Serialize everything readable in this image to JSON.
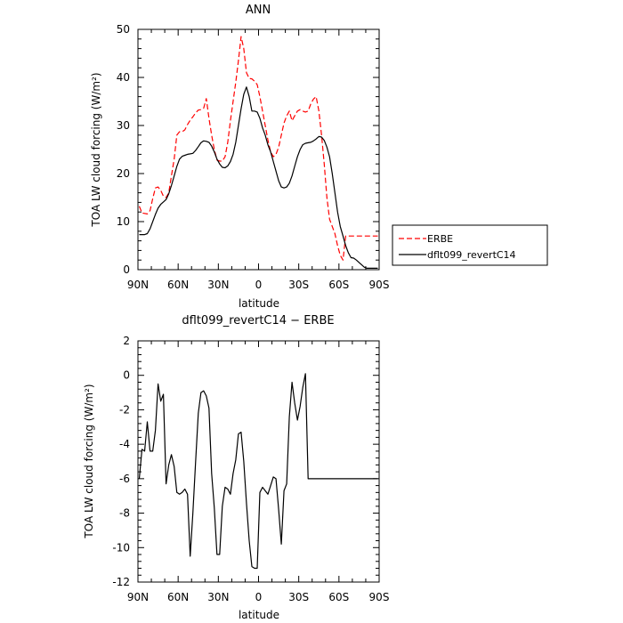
{
  "chart_data": [
    {
      "type": "line",
      "title": "ANN",
      "xlabel": "latitude",
      "ylabel": "TOA LW cloud forcing (W/m²)",
      "xlim": [
        -90,
        90
      ],
      "ylim": [
        0,
        50
      ],
      "yticks": [
        0,
        10,
        20,
        30,
        40,
        50
      ],
      "xticks": [
        {
          "value": -90,
          "label": "90N"
        },
        {
          "value": -60,
          "label": "60N"
        },
        {
          "value": -30,
          "label": "30N"
        },
        {
          "value": 0,
          "label": "0"
        },
        {
          "value": 30,
          "label": "30S"
        },
        {
          "value": 60,
          "label": "60S"
        },
        {
          "value": 90,
          "label": "90S"
        }
      ],
      "legend_position": "right",
      "series": [
        {
          "name": "ERBE",
          "color": "#ff0000",
          "dash": "dashed",
          "x": [
            -89,
            -87,
            -85,
            -83,
            -81,
            -79,
            -77,
            -75,
            -73,
            -71,
            -69,
            -67,
            -65,
            -63,
            -61,
            -59,
            -57,
            -55,
            -53,
            -51,
            -49,
            -47,
            -45,
            -43,
            -41,
            -39,
            -37,
            -35,
            -33,
            -31,
            -29,
            -27,
            -25,
            -23,
            -21,
            -19,
            -17,
            -15,
            -13,
            -11,
            -9,
            -7,
            -5,
            -3,
            -1,
            1,
            3,
            5,
            7,
            9,
            11,
            13,
            15,
            17,
            19,
            21,
            23,
            25,
            27,
            29,
            31,
            33,
            35,
            37,
            39,
            41,
            43,
            45,
            47,
            49,
            51,
            53,
            55,
            57,
            59,
            61,
            63,
            65,
            67,
            69,
            71,
            73,
            75,
            77,
            79,
            81,
            83,
            85,
            87,
            89
          ],
          "values": [
            13.2,
            11.8,
            11.7,
            11.6,
            12.3,
            14.8,
            17.0,
            17.2,
            16.5,
            15.3,
            15.0,
            16.0,
            19.5,
            23.0,
            28.0,
            28.7,
            28.7,
            29.1,
            30.2,
            31.1,
            31.8,
            32.6,
            33.2,
            33.3,
            33.6,
            35.6,
            31.5,
            28.0,
            25.0,
            22.8,
            22.6,
            22.6,
            23.5,
            26.5,
            31.0,
            35.0,
            39.0,
            43.5,
            48.5,
            46.0,
            41.0,
            39.8,
            39.7,
            39.2,
            38.5,
            36.0,
            33.0,
            30.0,
            27.0,
            24.5,
            23.5,
            24.0,
            25.5,
            28.0,
            30.5,
            32.0,
            33.0,
            31.0,
            32.0,
            33.0,
            33.3,
            33.0,
            32.8,
            33.0,
            34.5,
            35.5,
            36.0,
            33.0,
            28.0,
            22.0,
            15.0,
            10.5,
            9.0,
            7.5,
            5.0,
            3.0,
            2.0,
            7.0,
            7.0,
            7.0,
            7.0,
            7.0,
            7.0,
            7.0,
            7.0,
            7.0,
            7.0,
            7.0,
            7.0,
            7.0
          ]
        },
        {
          "name": "dflt099_revertC14",
          "color": "#000000",
          "dash": "solid",
          "x": [
            -89,
            -87,
            -85,
            -83,
            -81,
            -79,
            -77,
            -75,
            -73,
            -71,
            -69,
            -67,
            -65,
            -63,
            -61,
            -59,
            -57,
            -55,
            -53,
            -51,
            -49,
            -47,
            -45,
            -43,
            -41,
            -39,
            -37,
            -35,
            -33,
            -31,
            -29,
            -27,
            -25,
            -23,
            -21,
            -19,
            -17,
            -15,
            -13,
            -11,
            -9,
            -7,
            -5,
            -3,
            -1,
            1,
            3,
            5,
            7,
            9,
            11,
            13,
            15,
            17,
            19,
            21,
            23,
            25,
            27,
            29,
            31,
            33,
            35,
            37,
            39,
            41,
            43,
            45,
            47,
            49,
            51,
            53,
            55,
            57,
            59,
            61,
            63,
            65,
            67,
            69,
            71,
            73,
            75,
            77,
            79,
            81,
            83,
            85,
            87,
            89
          ],
          "values": [
            7.3,
            7.3,
            7.3,
            7.5,
            8.5,
            10.0,
            11.5,
            12.8,
            13.6,
            14.1,
            14.6,
            15.8,
            17.5,
            19.5,
            21.5,
            23.0,
            23.6,
            23.8,
            24.0,
            24.1,
            24.2,
            24.8,
            25.6,
            26.4,
            26.8,
            26.7,
            26.5,
            25.7,
            24.5,
            23.0,
            22.0,
            21.3,
            21.2,
            21.6,
            22.5,
            24.0,
            26.5,
            30.0,
            33.5,
            36.5,
            38.0,
            36.0,
            33.0,
            33.0,
            32.8,
            31.5,
            29.5,
            28.0,
            26.0,
            24.5,
            22.5,
            20.5,
            18.5,
            17.2,
            17.0,
            17.2,
            18.0,
            19.5,
            21.5,
            23.5,
            25.0,
            26.0,
            26.3,
            26.4,
            26.5,
            26.8,
            27.2,
            27.7,
            27.6,
            26.9,
            25.5,
            23.5,
            20.0,
            16.0,
            12.0,
            9.0,
            7.0,
            5.0,
            3.5,
            2.5,
            2.4,
            2.0,
            1.5,
            1.0,
            0.5,
            0.3,
            0.3,
            0.3,
            0.3,
            0.3
          ]
        }
      ]
    },
    {
      "type": "line",
      "title": "dflt099_revertC14 − ERBE",
      "xlabel": "latitude",
      "ylabel": "TOA LW cloud forcing (W/m²)",
      "xlim": [
        -90,
        90
      ],
      "ylim": [
        -12,
        2
      ],
      "yticks": [
        -12,
        -10,
        -8,
        -6,
        -4,
        -2,
        0,
        2
      ],
      "xticks": [
        {
          "value": -90,
          "label": "90N"
        },
        {
          "value": -60,
          "label": "60N"
        },
        {
          "value": -30,
          "label": "30N"
        },
        {
          "value": 0,
          "label": "0"
        },
        {
          "value": 30,
          "label": "30S"
        },
        {
          "value": 60,
          "label": "60S"
        },
        {
          "value": 90,
          "label": "90S"
        }
      ],
      "series": [
        {
          "color": "#000000",
          "dash": "solid",
          "x": [
            -89,
            -87,
            -85,
            -83,
            -81,
            -79,
            -77,
            -75,
            -73,
            -71,
            -69,
            -67,
            -65,
            -63,
            -61,
            -59,
            -57,
            -55,
            -53,
            -51,
            -49,
            -47,
            -45,
            -43,
            -41,
            -39,
            -37,
            -35,
            -33,
            -31,
            -29,
            -27,
            -25,
            -23,
            -21,
            -19,
            -17,
            -15,
            -13,
            -11,
            -9,
            -7,
            -5,
            -3,
            -1,
            1,
            3,
            5,
            7,
            9,
            11,
            13,
            15,
            17,
            19,
            21,
            23,
            25,
            27,
            29,
            31,
            33,
            35,
            37,
            39,
            41,
            43,
            45,
            47,
            49,
            51,
            53,
            55,
            57,
            59,
            61,
            63,
            65,
            67,
            69,
            71,
            73,
            75,
            77,
            79,
            81,
            83,
            85,
            87,
            89
          ],
          "values": [
            -6.0,
            -4.3,
            -4.4,
            -2.7,
            -4.4,
            -4.4,
            -3.2,
            -0.5,
            -1.5,
            -1.1,
            -6.3,
            -5.2,
            -4.6,
            -5.3,
            -6.8,
            -6.9,
            -6.8,
            -6.6,
            -6.9,
            -10.5,
            -8.0,
            -5.1,
            -2.2,
            -1.0,
            -0.9,
            -1.2,
            -1.9,
            -5.7,
            -7.7,
            -10.4,
            -10.4,
            -7.6,
            -6.5,
            -6.6,
            -6.9,
            -5.7,
            -4.9,
            -3.4,
            -3.3,
            -5.0,
            -7.4,
            -9.6,
            -11.1,
            -11.2,
            -11.2,
            -6.8,
            -6.5,
            -6.7,
            -6.9,
            -6.4,
            -5.9,
            -6.0,
            -7.8,
            -9.8,
            -6.7,
            -6.3,
            -2.4,
            -0.4,
            -1.6,
            -2.6,
            -1.8,
            -0.7,
            0.1,
            -6.0,
            -6.0,
            -6.0,
            -6.0,
            -6.0,
            -6.0,
            -6.0,
            -6.0,
            -6.0,
            -6.0,
            -6.0,
            -6.0,
            -6.0,
            -6.0,
            -6.0,
            -6.0,
            -6.0,
            -6.0,
            -6.0,
            -6.0,
            -6.0,
            -6.0,
            -6.0,
            -6.0,
            -6.0,
            -6.0,
            -6.0
          ]
        }
      ]
    }
  ]
}
